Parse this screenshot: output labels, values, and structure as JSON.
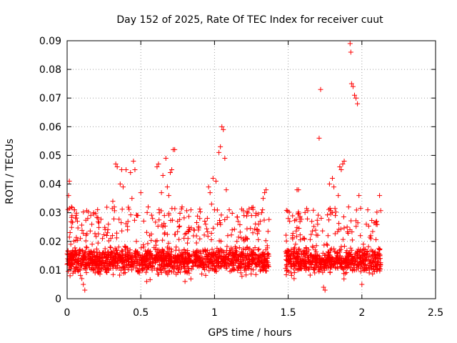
{
  "chart_data": {
    "type": "scatter",
    "title": "Day 152 of 2025, Rate Of TEC Index for receiver cuut",
    "xlabel": "GPS time / hours",
    "ylabel": "ROTI / TECUs",
    "xlim": [
      0,
      2.5
    ],
    "ylim": [
      0,
      0.09
    ],
    "xticks": [
      0,
      0.5,
      1,
      1.5,
      2,
      2.5
    ],
    "xtick_labels": [
      "0",
      "0.5",
      "1",
      "1.5",
      "2",
      "2.5"
    ],
    "yticks": [
      0,
      0.01,
      0.02,
      0.03,
      0.04,
      0.05,
      0.06,
      0.07,
      0.08,
      0.09
    ],
    "ytick_labels": [
      "0",
      "0.01",
      "0.02",
      "0.03",
      "0.04",
      "0.05",
      "0.06",
      "0.07",
      "0.08",
      "0.09"
    ],
    "grid": true,
    "marker": "+",
    "series": [
      {
        "name": "ROTI",
        "color": "#ff0000",
        "points": [
          [
            0.0,
            0.012
          ],
          [
            0.01,
            0.036
          ],
          [
            0.015,
            0.041
          ],
          [
            0.02,
            0.008
          ],
          [
            0.025,
            0.019
          ],
          [
            0.03,
            0.032
          ],
          [
            0.04,
            0.015
          ],
          [
            0.05,
            0.031
          ],
          [
            0.06,
            0.011
          ],
          [
            0.07,
            0.027
          ],
          [
            0.08,
            0.014
          ],
          [
            0.09,
            0.021
          ],
          [
            0.1,
            0.007
          ],
          [
            0.11,
            0.005
          ],
          [
            0.12,
            0.003
          ],
          [
            0.13,
            0.018
          ],
          [
            0.14,
            0.028
          ],
          [
            0.15,
            0.012
          ],
          [
            0.16,
            0.029
          ],
          [
            0.17,
            0.019
          ],
          [
            0.18,
            0.03
          ],
          [
            0.19,
            0.009
          ],
          [
            0.2,
            0.016
          ],
          [
            0.22,
            0.013
          ],
          [
            0.24,
            0.021
          ],
          [
            0.26,
            0.01
          ],
          [
            0.28,
            0.026
          ],
          [
            0.3,
            0.015
          ],
          [
            0.31,
            0.034
          ],
          [
            0.32,
            0.032
          ],
          [
            0.33,
            0.047
          ],
          [
            0.34,
            0.046
          ],
          [
            0.35,
            0.018
          ],
          [
            0.36,
            0.04
          ],
          [
            0.37,
            0.045
          ],
          [
            0.38,
            0.039
          ],
          [
            0.39,
            0.013
          ],
          [
            0.4,
            0.045
          ],
          [
            0.41,
            0.024
          ],
          [
            0.42,
            0.016
          ],
          [
            0.43,
            0.044
          ],
          [
            0.44,
            0.035
          ],
          [
            0.45,
            0.048
          ],
          [
            0.46,
            0.045
          ],
          [
            0.47,
            0.02
          ],
          [
            0.48,
            0.029
          ],
          [
            0.49,
            0.009
          ],
          [
            0.5,
            0.037
          ],
          [
            0.52,
            0.018
          ],
          [
            0.54,
            0.006
          ],
          [
            0.55,
            0.032
          ],
          [
            0.56,
            0.022
          ],
          [
            0.57,
            0.011
          ],
          [
            0.58,
            0.028
          ],
          [
            0.6,
            0.02
          ],
          [
            0.61,
            0.046
          ],
          [
            0.62,
            0.047
          ],
          [
            0.63,
            0.016
          ],
          [
            0.64,
            0.037
          ],
          [
            0.65,
            0.043
          ],
          [
            0.66,
            0.029
          ],
          [
            0.67,
            0.049
          ],
          [
            0.68,
            0.039
          ],
          [
            0.69,
            0.036
          ],
          [
            0.7,
            0.044
          ],
          [
            0.71,
            0.045
          ],
          [
            0.72,
            0.052
          ],
          [
            0.73,
            0.052
          ],
          [
            0.74,
            0.018
          ],
          [
            0.75,
            0.027
          ],
          [
            0.76,
            0.013
          ],
          [
            0.78,
            0.032
          ],
          [
            0.8,
            0.006
          ],
          [
            0.82,
            0.021
          ],
          [
            0.84,
            0.031
          ],
          [
            0.86,
            0.024
          ],
          [
            0.88,
            0.016
          ],
          [
            0.9,
            0.028
          ],
          [
            0.92,
            0.011
          ],
          [
            0.94,
            0.026
          ],
          [
            0.96,
            0.039
          ],
          [
            0.97,
            0.037
          ],
          [
            0.98,
            0.033
          ],
          [
            0.99,
            0.042
          ],
          [
            1.0,
            0.031
          ],
          [
            1.01,
            0.041
          ],
          [
            1.02,
            0.026
          ],
          [
            1.03,
            0.051
          ],
          [
            1.04,
            0.053
          ],
          [
            1.05,
            0.06
          ],
          [
            1.06,
            0.059
          ],
          [
            1.07,
            0.049
          ],
          [
            1.08,
            0.038
          ],
          [
            1.09,
            0.022
          ],
          [
            1.1,
            0.031
          ],
          [
            1.12,
            0.024
          ],
          [
            1.14,
            0.016
          ],
          [
            1.16,
            0.027
          ],
          [
            1.18,
            0.013
          ],
          [
            1.2,
            0.029
          ],
          [
            1.22,
            0.021
          ],
          [
            1.24,
            0.012
          ],
          [
            1.26,
            0.023
          ],
          [
            1.28,
            0.029
          ],
          [
            1.3,
            0.015
          ],
          [
            1.31,
            0.027
          ],
          [
            1.32,
            0.03
          ],
          [
            1.33,
            0.035
          ],
          [
            1.34,
            0.037
          ],
          [
            1.35,
            0.038
          ],
          [
            1.49,
            0.015
          ],
          [
            1.5,
            0.028
          ],
          [
            1.51,
            0.027
          ],
          [
            1.52,
            0.009
          ],
          [
            1.53,
            0.022
          ],
          [
            1.54,
            0.007
          ],
          [
            1.55,
            0.019
          ],
          [
            1.56,
            0.038
          ],
          [
            1.57,
            0.038
          ],
          [
            1.58,
            0.013
          ],
          [
            1.6,
            0.021
          ],
          [
            1.62,
            0.011
          ],
          [
            1.64,
            0.017
          ],
          [
            1.66,
            0.027
          ],
          [
            1.68,
            0.009
          ],
          [
            1.7,
            0.026
          ],
          [
            1.71,
            0.056
          ],
          [
            1.72,
            0.073
          ],
          [
            1.73,
            0.014
          ],
          [
            1.74,
            0.004
          ],
          [
            1.75,
            0.003
          ],
          [
            1.76,
            0.019
          ],
          [
            1.77,
            0.022
          ],
          [
            1.78,
            0.04
          ],
          [
            1.79,
            0.011
          ],
          [
            1.8,
            0.042
          ],
          [
            1.81,
            0.039
          ],
          [
            1.82,
            0.029
          ],
          [
            1.83,
            0.016
          ],
          [
            1.84,
            0.036
          ],
          [
            1.85,
            0.046
          ],
          [
            1.86,
            0.045
          ],
          [
            1.87,
            0.047
          ],
          [
            1.88,
            0.048
          ],
          [
            1.89,
            0.011
          ],
          [
            1.9,
            0.025
          ],
          [
            1.91,
            0.032
          ],
          [
            1.92,
            0.089
          ],
          [
            1.925,
            0.086
          ],
          [
            1.93,
            0.075
          ],
          [
            1.94,
            0.074
          ],
          [
            1.95,
            0.071
          ],
          [
            1.96,
            0.07
          ],
          [
            1.97,
            0.068
          ],
          [
            1.98,
            0.036
          ],
          [
            1.99,
            0.022
          ],
          [
            2.0,
            0.005
          ],
          [
            2.01,
            0.019
          ],
          [
            2.02,
            0.012
          ],
          [
            2.03,
            0.026
          ],
          [
            2.04,
            0.031
          ],
          [
            2.05,
            0.009
          ],
          [
            2.06,
            0.022
          ],
          [
            2.08,
            0.015
          ],
          [
            2.1,
            0.027
          ],
          [
            2.12,
            0.036
          ]
        ]
      }
    ]
  },
  "cloud": {
    "segments": [
      {
        "x0": 0.0,
        "x1": 1.37,
        "n": 1500
      },
      {
        "x0": 1.48,
        "x1": 2.13,
        "n": 700
      }
    ]
  }
}
